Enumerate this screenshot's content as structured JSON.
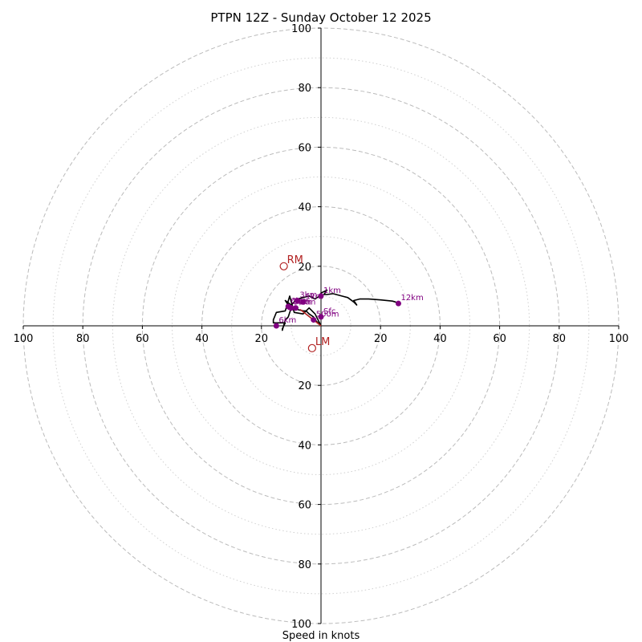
{
  "chart_data": {
    "type": "hodograph",
    "title": "PTPN 12Z - Sunday October 12 2025",
    "xlabel": "Speed in knots",
    "units": "knots",
    "range": [
      -100,
      100
    ],
    "rings_major": [
      20,
      40,
      60,
      80,
      100
    ],
    "rings_minor": [
      10,
      30,
      50,
      70,
      90
    ],
    "grid_style": "dashed rings, dotted minor rings",
    "x_tick_labels": [
      "100",
      "80",
      "60",
      "40",
      "20",
      "20",
      "40",
      "60",
      "80",
      "100"
    ],
    "y_tick_labels": [
      "100",
      "80",
      "60",
      "40",
      "20",
      "20",
      "40",
      "60",
      "80",
      "100"
    ],
    "colors": {
      "trace": "#000000",
      "points": "#800080",
      "motion": "#b22222",
      "grid": "#bbbbbb",
      "axis": "#000000"
    },
    "trace": [
      [
        0,
        0
      ],
      [
        -2,
        2
      ],
      [
        -2.5,
        3
      ],
      [
        -4,
        4
      ],
      [
        -5,
        5
      ],
      [
        -6,
        5
      ],
      [
        -8,
        5.5
      ],
      [
        -9,
        6
      ],
      [
        -10,
        6.5
      ],
      [
        -11,
        7
      ],
      [
        -12,
        8.5
      ],
      [
        -10,
        7
      ],
      [
        -9,
        8
      ],
      [
        -8,
        9
      ],
      [
        -6,
        9.5
      ],
      [
        -4,
        10
      ],
      [
        -2,
        9
      ],
      [
        -0.5,
        10
      ],
      [
        0,
        11
      ],
      [
        2,
        12
      ],
      [
        1,
        10.5
      ],
      [
        2,
        10.5
      ],
      [
        4,
        10.8
      ],
      [
        7,
        10
      ],
      [
        9,
        9.5
      ],
      [
        11,
        8
      ],
      [
        12,
        7
      ],
      [
        11,
        8.5
      ],
      [
        13,
        9
      ],
      [
        16,
        9
      ],
      [
        20,
        8.7
      ],
      [
        24,
        8.3
      ],
      [
        25,
        8
      ],
      [
        26,
        7.5
      ]
    ],
    "trace_low": [
      [
        0,
        0
      ],
      [
        -2,
        4
      ],
      [
        -4,
        6
      ],
      [
        -6,
        4
      ],
      [
        -9,
        4.5
      ],
      [
        -10.5,
        10
      ],
      [
        -12,
        5
      ],
      [
        -15,
        4.5
      ],
      [
        -16,
        2
      ],
      [
        -16,
        1
      ],
      [
        -12,
        1
      ],
      [
        -13,
        -1
      ],
      [
        -13,
        -1.5
      ],
      [
        -12,
        2
      ],
      [
        -11,
        3
      ],
      [
        -10,
        6
      ]
    ],
    "height_points": [
      {
        "label": "Sfc",
        "u": 0,
        "v": 3
      },
      {
        "label": "500m",
        "u": -2.5,
        "v": 2
      },
      {
        "label": "1km",
        "u": -6,
        "v": 8
      },
      {
        "label": "3km",
        "u": -8,
        "v": 8.5
      },
      {
        "label": "6km",
        "u": -8.5,
        "v": 6
      },
      {
        "label": "9km",
        "u": -10,
        "v": 6
      },
      {
        "label": "6km",
        "u": -11,
        "v": 6.5
      },
      {
        "label": "3km",
        "u": -10.5,
        "v": 6.2
      },
      {
        "label": "1km",
        "u": 0,
        "v": 10
      },
      {
        "label": "12km",
        "u": 26,
        "v": 7.5
      },
      {
        "label": "6km",
        "u": -15,
        "v": 0
      }
    ],
    "storm_motion": [
      {
        "label": "RM",
        "u": -12.5,
        "v": 20
      },
      {
        "label": "LM",
        "u": -3,
        "v": -7.5
      }
    ],
    "mean_wind": {
      "u": -7,
      "v": 5.5
    }
  }
}
